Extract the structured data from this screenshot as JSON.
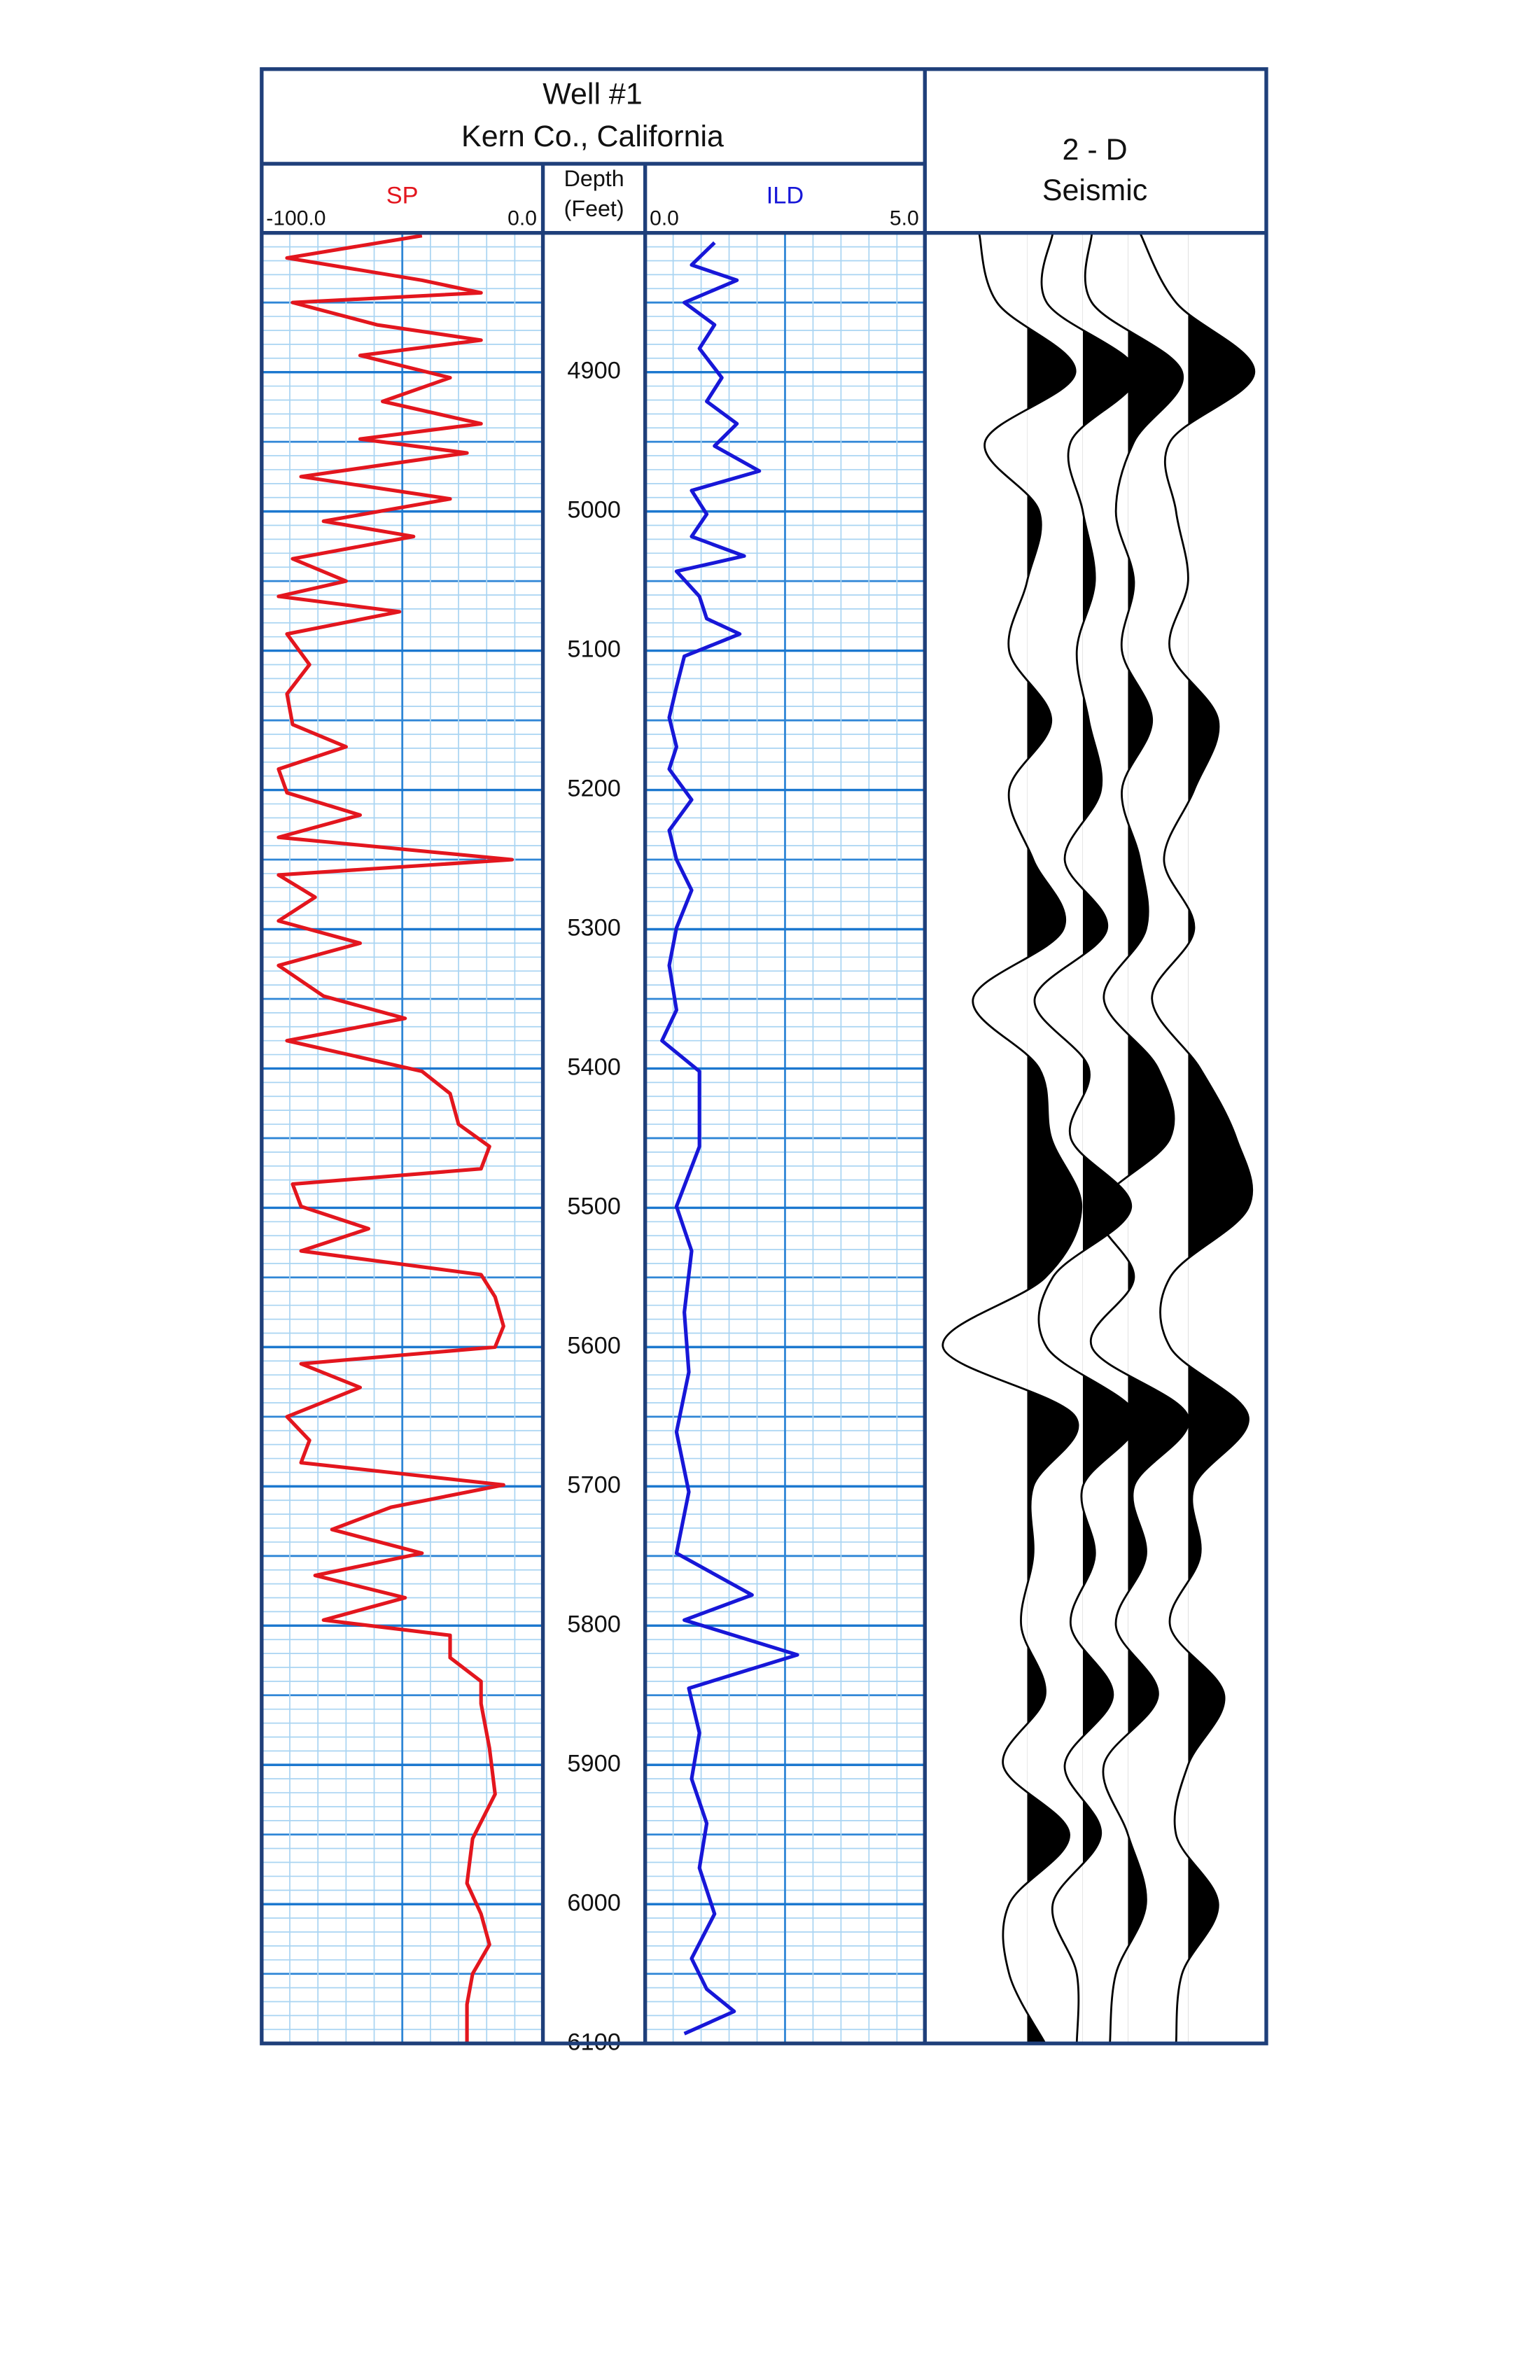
{
  "chart_data": {
    "type": "log",
    "title": "Well #1",
    "subtitle": "Kern Co., California",
    "depth_label": "Depth",
    "depth_unit": "(Feet)",
    "ylim": [
      4800,
      6100
    ],
    "yticks": [
      4900,
      5000,
      5100,
      5200,
      5300,
      5400,
      5500,
      5600,
      5700,
      5800,
      5900,
      6000,
      6100
    ],
    "grid": true,
    "tracks": [
      {
        "name": "SP",
        "color": "#e3161e",
        "xlim": [
          -100,
          0
        ],
        "xticks": [
          {
            "value": -100,
            "label": "-100.0"
          },
          {
            "value": 0,
            "label": "0.0"
          }
        ],
        "depth": [
          4802,
          4818,
          4834,
          4843,
          4850,
          4866,
          4877,
          4888,
          4904,
          4921,
          4937,
          4948,
          4958,
          4975,
          4991,
          5007,
          5018,
          5034,
          5050,
          5061,
          5072,
          5088,
          5110,
          5131,
          5153,
          5169,
          5185,
          5202,
          5218,
          5234,
          5250,
          5261,
          5277,
          5294,
          5310,
          5326,
          5348,
          5364,
          5380,
          5402,
          5418,
          5440,
          5456,
          5472,
          5483,
          5499,
          5515,
          5531,
          5548,
          5564,
          5585,
          5600,
          5612,
          5629,
          5650,
          5667,
          5683,
          5699,
          5715,
          5731,
          5748,
          5764,
          5780,
          5796,
          5807,
          5823,
          5840,
          5856,
          5888,
          5921,
          5953,
          5985,
          6007,
          6029,
          6050,
          6072,
          6099
        ],
        "values": [
          -43,
          -91,
          -43,
          -22,
          -89,
          -59,
          -22,
          -65,
          -33,
          -57,
          -22,
          -65,
          -27,
          -86,
          -33,
          -78,
          -46,
          -89,
          -70,
          -94,
          -51,
          -91,
          -83,
          -91,
          -89,
          -70,
          -94,
          -91,
          -65,
          -94,
          -11,
          -94,
          -81,
          -94,
          -65,
          -94,
          -78,
          -49,
          -91,
          -43,
          -33,
          -30,
          -19,
          -22,
          -89,
          -86,
          -62,
          -86,
          -22,
          -17,
          -14,
          -17,
          -86,
          -65,
          -91,
          -83,
          -86,
          -14,
          -54,
          -75,
          -43,
          -81,
          -49,
          -78,
          -33,
          -33,
          -22,
          -22,
          -19,
          -17,
          -25,
          -27,
          -22,
          -19,
          -25,
          -27,
          -27
        ]
      },
      {
        "name": "ILD",
        "color": "#1717d8",
        "xlim": [
          0,
          5
        ],
        "xticks": [
          {
            "value": 0,
            "label": "0.0"
          },
          {
            "value": 5,
            "label": "5.0"
          }
        ],
        "depth": [
          4807,
          4823,
          4834,
          4850,
          4866,
          4883,
          4904,
          4921,
          4937,
          4953,
          4971,
          4985,
          5002,
          5018,
          5032,
          5043,
          5061,
          5077,
          5088,
          5104,
          5126,
          5148,
          5169,
          5185,
          5207,
          5229,
          5250,
          5272,
          5299,
          5326,
          5358,
          5380,
          5402,
          5456,
          5499,
          5531,
          5575,
          5618,
          5661,
          5704,
          5748,
          5778,
          5796,
          5821,
          5845,
          5877,
          5910,
          5942,
          5974,
          6007,
          6039,
          6061,
          6077,
          6093
        ],
        "values": [
          1.24,
          0.83,
          1.64,
          0.7,
          1.24,
          0.97,
          1.37,
          1.1,
          1.64,
          1.24,
          2.04,
          0.83,
          1.1,
          0.83,
          1.77,
          0.56,
          0.97,
          1.1,
          1.69,
          0.7,
          0.56,
          0.43,
          0.56,
          0.43,
          0.83,
          0.43,
          0.56,
          0.83,
          0.56,
          0.43,
          0.56,
          0.3,
          0.97,
          0.97,
          0.56,
          0.83,
          0.7,
          0.78,
          0.56,
          0.78,
          0.56,
          1.91,
          0.7,
          2.72,
          0.78,
          0.97,
          0.83,
          1.1,
          0.97,
          1.24,
          0.83,
          1.1,
          1.59,
          0.7
        ]
      }
    ],
    "seismic": {
      "title": "2 - D",
      "subtitle": "Seismic",
      "depth": [
        4800,
        4850,
        4900,
        4950,
        5000,
        5050,
        5100,
        5150,
        5200,
        5250,
        5300,
        5350,
        5400,
        5450,
        5500,
        5550,
        5600,
        5650,
        5700,
        5750,
        5800,
        5850,
        5900,
        5950,
        6000,
        6050,
        6100
      ],
      "traces": [
        [
          -0.8,
          -0.5,
          0.8,
          -0.7,
          0.2,
          0.0,
          -0.3,
          0.4,
          -0.3,
          0.1,
          0.6,
          -0.9,
          0.2,
          0.4,
          0.9,
          0.3,
          -1.4,
          0.8,
          0.1,
          0.1,
          -0.1,
          0.3,
          -0.4,
          0.7,
          -0.3,
          -0.3,
          0.3
        ],
        [
          -0.5,
          -0.6,
          0.9,
          -0.2,
          0.0,
          0.2,
          -0.1,
          0.1,
          0.3,
          -0.3,
          0.4,
          -0.8,
          0.1,
          -0.2,
          0.8,
          -0.5,
          -0.6,
          0.9,
          0.0,
          0.2,
          -0.2,
          0.5,
          -0.3,
          0.3,
          -0.5,
          -0.1,
          -0.1
        ],
        [
          -0.6,
          -0.6,
          0.9,
          0.1,
          -0.2,
          0.1,
          -0.1,
          0.4,
          -0.1,
          0.2,
          0.3,
          -0.4,
          0.5,
          0.7,
          -0.5,
          0.1,
          -0.6,
          1.0,
          0.1,
          0.3,
          -0.2,
          0.5,
          -0.4,
          0.0,
          0.3,
          -0.2,
          -0.3
        ],
        [
          -0.8,
          -0.2,
          1.1,
          -0.3,
          -0.2,
          0.0,
          -0.3,
          0.5,
          0.1,
          -0.4,
          0.1,
          -0.6,
          0.2,
          0.8,
          1.0,
          -0.3,
          -0.3,
          1.0,
          0.1,
          0.2,
          -0.3,
          0.6,
          0.0,
          -0.2,
          0.5,
          -0.1,
          -0.2
        ]
      ]
    }
  }
}
